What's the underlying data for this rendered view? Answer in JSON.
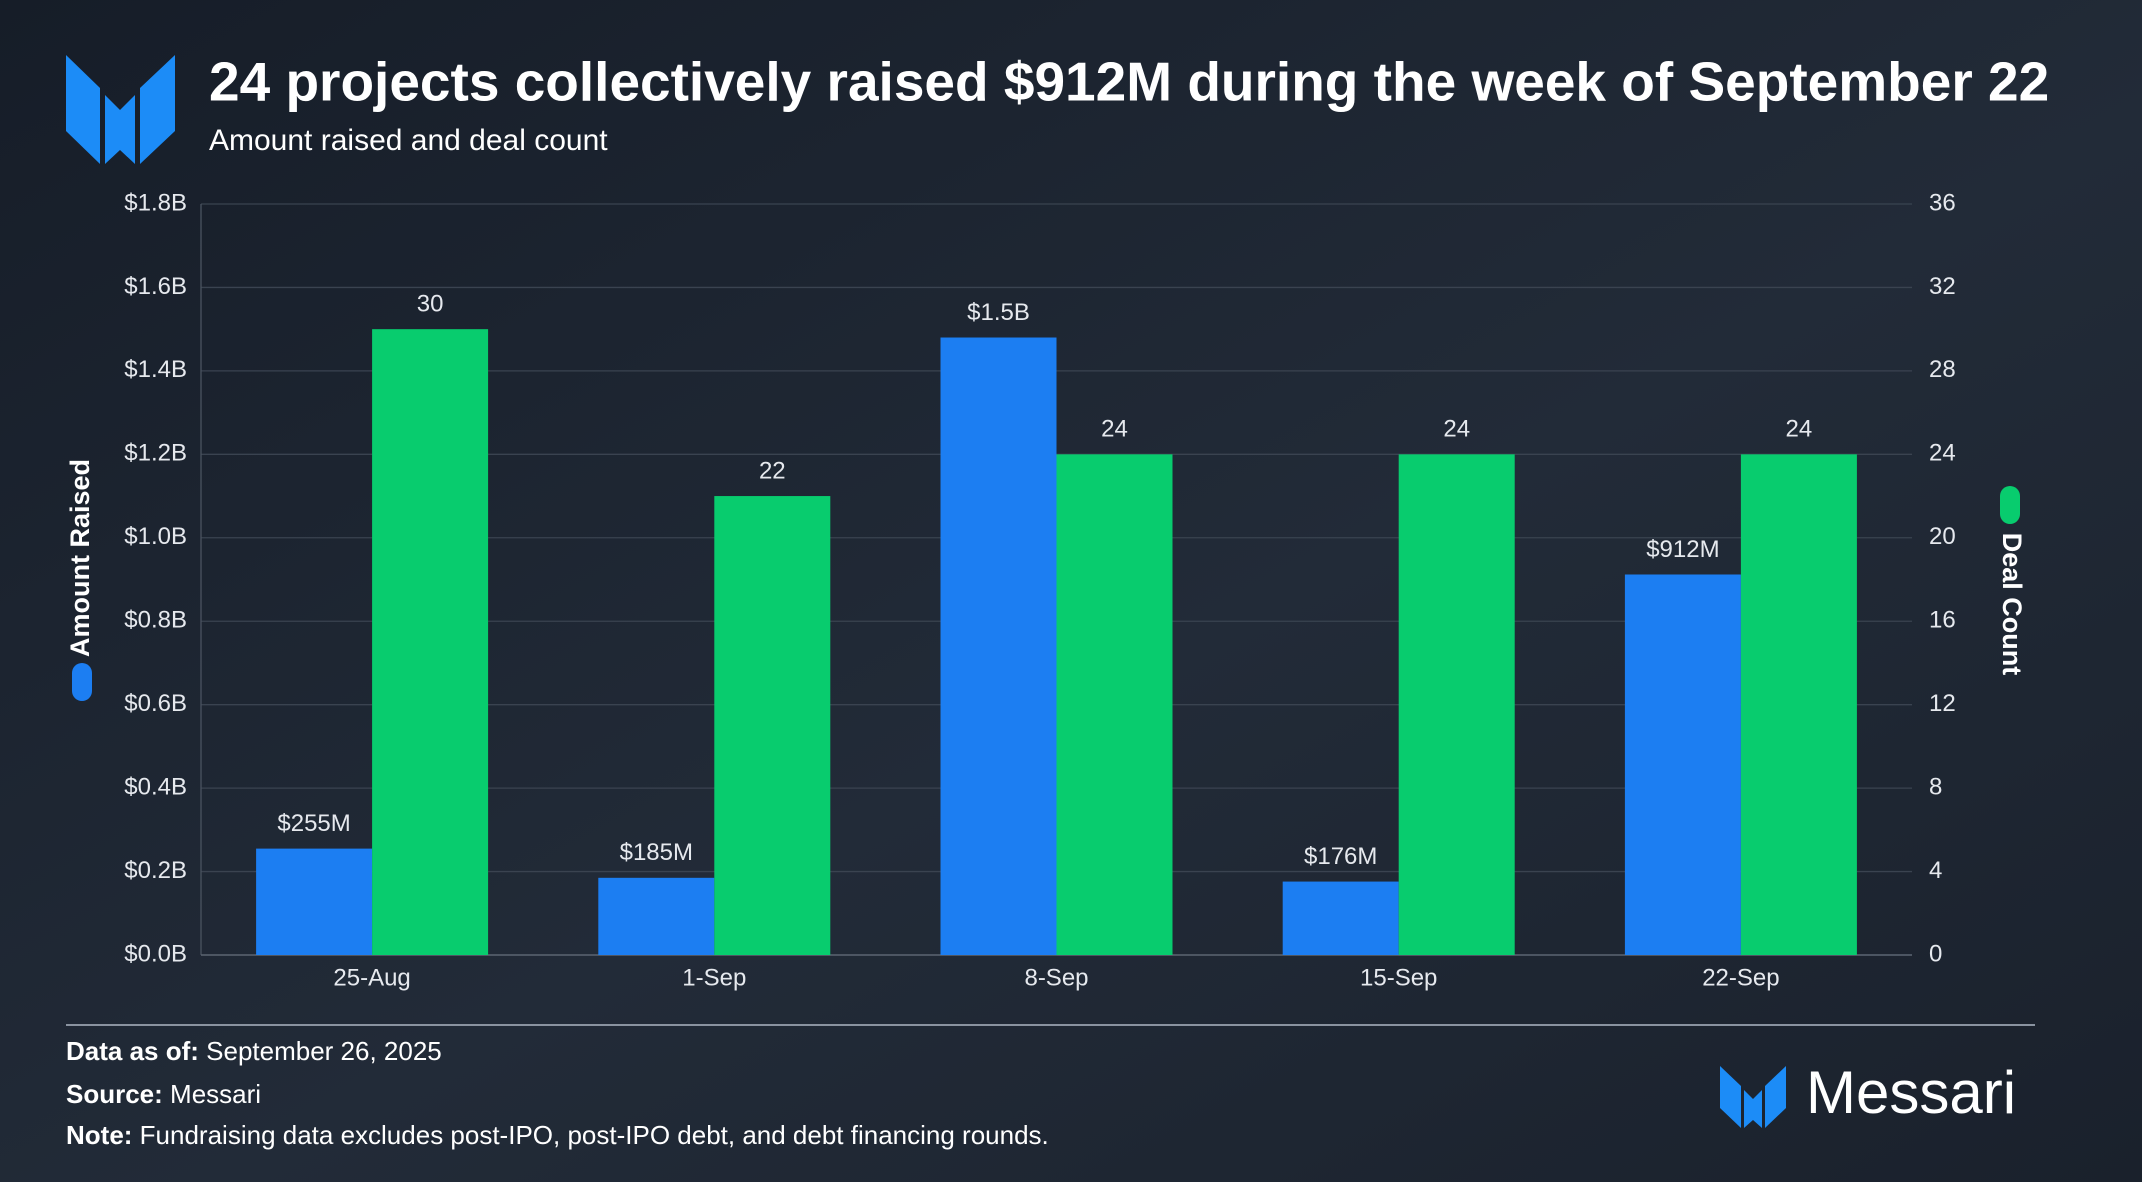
{
  "chart_data": {
    "type": "bar",
    "title": "24 projects collectively raised $912M during the week of September 22",
    "subtitle": "Amount raised and deal count",
    "categories": [
      "25-Aug",
      "1-Sep",
      "8-Sep",
      "15-Sep",
      "22-Sep"
    ],
    "series": [
      {
        "name": "Amount Raised",
        "color": "#1c7ef2",
        "values": [
          0.255,
          0.185,
          1.48,
          0.176,
          0.912
        ],
        "value_labels": [
          "$255M",
          "$185M",
          "$1.5B",
          "$176M",
          "$912M"
        ]
      },
      {
        "name": "Deal Count",
        "color": "#08cc6e",
        "axis": "y2",
        "values": [
          30,
          22,
          24,
          24,
          24
        ]
      }
    ],
    "ylim": [
      0,
      1.8
    ],
    "yticks": [
      {
        "value": 0,
        "label": "$0.0B"
      },
      {
        "value": 0.2,
        "label": "$0.2B"
      },
      {
        "value": 0.4,
        "label": "$0.4B"
      },
      {
        "value": 0.6,
        "label": "$0.6B"
      },
      {
        "value": 0.8,
        "label": "$0.8B"
      },
      {
        "value": 1.0,
        "label": "$1.0B"
      },
      {
        "value": 1.2,
        "label": "$1.2B"
      },
      {
        "value": 1.4,
        "label": "$1.4B"
      },
      {
        "value": 1.6,
        "label": "$1.6B"
      },
      {
        "value": 1.8,
        "label": "$1.8B"
      }
    ],
    "y2lim": [
      0,
      36
    ],
    "y2ticks": [
      0,
      4,
      8,
      12,
      16,
      20,
      24,
      28,
      32,
      36
    ],
    "grid": true
  },
  "footer": {
    "data_as_of": {
      "label": "Data as of:",
      "text": "September 26, 2025"
    },
    "source": {
      "label": "Source:",
      "text": "Messari"
    },
    "note": {
      "label": "Note:",
      "text": "Fundraising data excludes post-IPO, post-IPO debt, and debt financing rounds."
    },
    "brand": "Messari"
  }
}
